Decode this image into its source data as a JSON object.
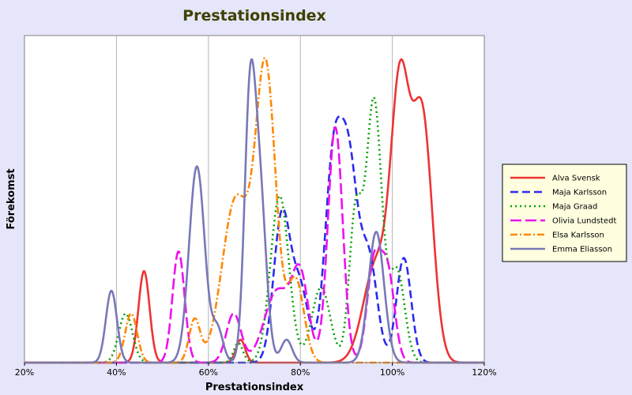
{
  "chart_data": {
    "type": "line",
    "title": "Prestationsindex",
    "xlabel": "Prestationsindex",
    "ylabel": "Förekomst",
    "xlim": [
      0.2,
      1.2
    ],
    "ylim": [
      0,
      1.0
    ],
    "x_ticks": [
      {
        "value": 0.2,
        "label": "20%"
      },
      {
        "value": 0.4,
        "label": "40%"
      },
      {
        "value": 0.6,
        "label": "60%"
      },
      {
        "value": 0.8,
        "label": "80%"
      },
      {
        "value": 1.0,
        "label": "100%"
      },
      {
        "value": 1.2,
        "label": "120%"
      }
    ],
    "grid": "vertical",
    "legend_position": "right",
    "series": [
      {
        "name": "Alva Svensk",
        "color": "#ee3333",
        "dash": "solid",
        "components": [
          [
            0.46,
            0.012,
            0.28
          ],
          [
            0.67,
            0.01,
            0.07
          ],
          [
            0.965,
            0.028,
            0.3
          ],
          [
            1.017,
            0.02,
            0.8
          ],
          [
            1.065,
            0.022,
            0.75
          ]
        ]
      },
      {
        "name": "Maja Karlsson",
        "color": "#2b2bee",
        "dash": "dashed",
        "components": [
          [
            0.76,
            0.018,
            0.45
          ],
          [
            0.8,
            0.018,
            0.22
          ],
          [
            0.87,
            0.018,
            0.55
          ],
          [
            0.905,
            0.02,
            0.6
          ],
          [
            0.95,
            0.018,
            0.3
          ],
          [
            1.025,
            0.016,
            0.32
          ]
        ]
      },
      {
        "name": "Maja Graad",
        "color": "#00a000",
        "dash": "dotted",
        "components": [
          [
            0.42,
            0.015,
            0.15
          ],
          [
            0.665,
            0.01,
            0.06
          ],
          [
            0.755,
            0.02,
            0.51
          ],
          [
            0.845,
            0.02,
            0.23
          ],
          [
            0.92,
            0.014,
            0.45
          ],
          [
            0.96,
            0.017,
            0.8
          ],
          [
            1.01,
            0.017,
            0.28
          ]
        ]
      },
      {
        "name": "Olivia Lundstedt",
        "color": "#ee10ee",
        "dash": "dash-long",
        "components": [
          [
            0.535,
            0.013,
            0.34
          ],
          [
            0.655,
            0.016,
            0.15
          ],
          [
            0.75,
            0.028,
            0.22
          ],
          [
            0.8,
            0.018,
            0.25
          ],
          [
            0.876,
            0.016,
            0.72
          ],
          [
            0.96,
            0.015,
            0.3
          ],
          [
            0.99,
            0.015,
            0.27
          ]
        ]
      },
      {
        "name": "Elsa Karlsson",
        "color": "#ff8800",
        "dash": "dash-dot",
        "components": [
          [
            0.432,
            0.013,
            0.15
          ],
          [
            0.57,
            0.012,
            0.13
          ],
          [
            0.66,
            0.03,
            0.5
          ],
          [
            0.725,
            0.022,
            0.88
          ],
          [
            0.79,
            0.018,
            0.25
          ]
        ]
      },
      {
        "name": "Emma Eliasson",
        "color": "#7878b8",
        "dash": "solid",
        "components": [
          [
            0.389,
            0.012,
            0.22
          ],
          [
            0.575,
            0.017,
            0.6
          ],
          [
            0.62,
            0.012,
            0.1
          ],
          [
            0.69,
            0.012,
            0.75
          ],
          [
            0.712,
            0.014,
            0.5
          ],
          [
            0.77,
            0.012,
            0.07
          ],
          [
            0.965,
            0.017,
            0.4
          ]
        ]
      }
    ]
  }
}
